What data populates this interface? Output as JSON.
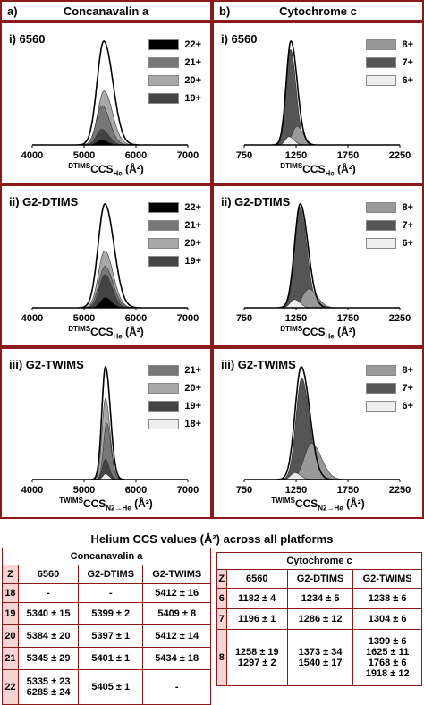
{
  "panel_a": {
    "letter": "a)",
    "title": "Concanavalin a"
  },
  "panel_b": {
    "letter": "b)",
    "title": "Cytochrome c"
  },
  "colors": {
    "frame": "#8b1a1a",
    "z_cell": "#f8d5d5"
  },
  "charts": {
    "conA_6560": {
      "label": "i) 6560",
      "xlabel_pre": "DTIMS",
      "xlabel_main": "CCS",
      "xlabel_sub": "He",
      "xlabel_unit": "(Å²)",
      "legend": [
        {
          "name": "22+",
          "color": "#000000"
        },
        {
          "name": "21+",
          "color": "#777777"
        },
        {
          "name": "20+",
          "color": "#a8a8a8"
        },
        {
          "name": "19+",
          "color": "#444444"
        }
      ]
    },
    "conA_dtims": {
      "label": "ii) G2-DTIMS",
      "xlabel_pre": "DTIMS",
      "xlabel_main": "CCS",
      "xlabel_sub": "He",
      "xlabel_unit": "(Å²)",
      "legend": [
        {
          "name": "22+",
          "color": "#000000"
        },
        {
          "name": "21+",
          "color": "#777777"
        },
        {
          "name": "20+",
          "color": "#a8a8a8"
        },
        {
          "name": "19+",
          "color": "#444444"
        }
      ]
    },
    "conA_twims": {
      "label": "iii) G2-TWIMS",
      "xlabel_pre": "TWIMS",
      "xlabel_main": "CCS",
      "xlabel_sub": "N2→He",
      "xlabel_unit": "(Å²)",
      "legend": [
        {
          "name": "21+",
          "color": "#777777"
        },
        {
          "name": "20+",
          "color": "#a8a8a8"
        },
        {
          "name": "19+",
          "color": "#444444"
        },
        {
          "name": "18+",
          "color": "#eeeeee"
        }
      ]
    },
    "cytc_6560": {
      "label": "i) 6560",
      "xlabel_pre": "DTIMS",
      "xlabel_main": "CCS",
      "xlabel_sub": "He",
      "xlabel_unit": "(Å²)",
      "legend": [
        {
          "name": "8+",
          "color": "#999999"
        },
        {
          "name": "7+",
          "color": "#555555"
        },
        {
          "name": "6+",
          "color": "#eeeeee"
        }
      ]
    },
    "cytc_dtims": {
      "label": "ii) G2-DTIMS",
      "xlabel_pre": "DTIMS",
      "xlabel_main": "CCS",
      "xlabel_sub": "He",
      "xlabel_unit": "(Å²)",
      "legend": [
        {
          "name": "8+",
          "color": "#999999"
        },
        {
          "name": "7+",
          "color": "#555555"
        },
        {
          "name": "6+",
          "color": "#eeeeee"
        }
      ]
    },
    "cytc_twims": {
      "label": "iii) G2-TWIMS",
      "xlabel_pre": "TWIMS",
      "xlabel_main": "CCS",
      "xlabel_sub": "N2→He",
      "xlabel_unit": "(Å²)",
      "legend": [
        {
          "name": "8+",
          "color": "#999999"
        },
        {
          "name": "7+",
          "color": "#555555"
        },
        {
          "name": "6+",
          "color": "#eeeeee"
        }
      ]
    }
  },
  "chart_data": [
    {
      "type": "area",
      "id": "conA_6560",
      "xlim": [
        4000,
        7000
      ],
      "xticks": [
        "4000",
        "5000",
        "6000",
        "7000"
      ],
      "series": [
        {
          "name": "total",
          "center": 5380,
          "width": 130,
          "height": 1.0
        },
        {
          "name": "20+",
          "center": 5384,
          "width": 120,
          "height": 0.52
        },
        {
          "name": "21+",
          "center": 5345,
          "width": 110,
          "height": 0.38
        },
        {
          "name": "19+",
          "center": 5340,
          "width": 100,
          "height": 0.15
        },
        {
          "name": "22+",
          "center": 5335,
          "width": 90,
          "height": 0.05
        }
      ]
    },
    {
      "type": "area",
      "id": "conA_dtims",
      "xlim": [
        4000,
        7000
      ],
      "xticks": [
        "4000",
        "5000",
        "6000",
        "7000"
      ],
      "series": [
        {
          "name": "total",
          "center": 5400,
          "width": 130,
          "height": 1.0
        },
        {
          "name": "20+",
          "center": 5397,
          "width": 120,
          "height": 0.55
        },
        {
          "name": "21+",
          "center": 5401,
          "width": 115,
          "height": 0.4
        },
        {
          "name": "19+",
          "center": 5399,
          "width": 105,
          "height": 0.32
        },
        {
          "name": "22+",
          "center": 5405,
          "width": 95,
          "height": 0.1
        }
      ]
    },
    {
      "type": "area",
      "id": "conA_twims",
      "xlim": [
        4000,
        7000
      ],
      "xticks": [
        "4000",
        "5000",
        "6000",
        "7000"
      ],
      "series": [
        {
          "name": "total",
          "center": 5412,
          "width": 70,
          "height": 1.0
        },
        {
          "name": "20+",
          "center": 5412,
          "width": 65,
          "height": 0.72
        },
        {
          "name": "21+",
          "center": 5434,
          "width": 60,
          "height": 0.5
        },
        {
          "name": "19+",
          "center": 5409,
          "width": 55,
          "height": 0.18
        },
        {
          "name": "18+",
          "center": 5412,
          "width": 50,
          "height": 0.05
        }
      ]
    },
    {
      "type": "area",
      "id": "cytc_6560",
      "xlim": [
        750,
        2250
      ],
      "xticks": [
        "750",
        "1250",
        "1750",
        "2250"
      ],
      "series": [
        {
          "name": "total",
          "center": 1200,
          "width": 45,
          "height": 1.0
        },
        {
          "name": "7+",
          "center": 1196,
          "width": 40,
          "height": 0.92
        },
        {
          "name": "8+",
          "center": 1258,
          "width": 45,
          "height": 0.18
        },
        {
          "name": "6+",
          "center": 1182,
          "width": 35,
          "height": 0.08
        }
      ]
    },
    {
      "type": "area",
      "id": "cytc_dtims",
      "xlim": [
        750,
        2250
      ],
      "xticks": [
        "750",
        "1250",
        "1750",
        "2250"
      ],
      "series": [
        {
          "name": "total",
          "center": 1290,
          "width": 55,
          "height": 1.0
        },
        {
          "name": "7+",
          "center": 1286,
          "width": 50,
          "height": 0.97
        },
        {
          "name": "8+",
          "center": 1373,
          "width": 60,
          "height": 0.18
        },
        {
          "name": "6+",
          "center": 1234,
          "width": 40,
          "height": 0.08
        }
      ]
    },
    {
      "type": "area",
      "id": "cytc_twims",
      "xlim": [
        750,
        2250
      ],
      "xticks": [
        "750",
        "1250",
        "1750",
        "2250"
      ],
      "series": [
        {
          "name": "total",
          "center": 1300,
          "width": 60,
          "height": 1.0
        },
        {
          "name": "7+",
          "center": 1304,
          "width": 55,
          "height": 0.9
        },
        {
          "name": "8+",
          "center": 1399,
          "width": 70,
          "height": 0.32
        },
        {
          "name": "6+",
          "center": 1238,
          "width": 40,
          "height": 0.06
        }
      ]
    }
  ],
  "table_conA": {
    "heading": "Helium CCS values (Å²) across all platforms",
    "title": "Concanavalin a",
    "headers": [
      "Z",
      "6560",
      "G2-DTIMS",
      "G2-TWIMS"
    ],
    "rows": [
      [
        "18",
        "-",
        "-",
        "5412 ± 16"
      ],
      [
        "19",
        "5340 ± 15",
        "5399 ± 2",
        "5409 ± 8"
      ],
      [
        "20",
        "5384 ± 20",
        "5397 ± 1",
        "5412 ± 14"
      ],
      [
        "21",
        "5345 ± 29",
        "5401 ± 1",
        "5434 ± 18"
      ],
      [
        "22",
        "5335 ± 23\n6285 ± 24",
        "5405 ± 1",
        "-"
      ]
    ]
  },
  "table_cytc": {
    "title": "Cytochrome c",
    "headers": [
      "Z",
      "6560",
      "G2-DTIMS",
      "G2-TWIMS"
    ],
    "rows": [
      [
        "6",
        "1182 ± 4",
        "1234 ± 5",
        "1238 ± 6"
      ],
      [
        "7",
        "1196 ± 1",
        "1286 ± 12",
        "1304 ± 6"
      ],
      [
        "8",
        "1258 ± 19\n1297 ± 2",
        "1373 ± 34\n1540 ± 17",
        "1399 ± 6\n1625 ± 11\n1768 ± 6\n1918 ± 12"
      ]
    ]
  }
}
